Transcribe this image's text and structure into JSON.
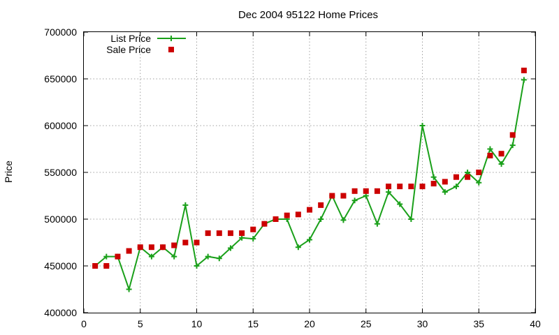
{
  "chart_data": {
    "type": "line",
    "title": "Dec 2004 95122 Home Prices",
    "xlabel": "",
    "ylabel": "Price",
    "xlim": [
      0,
      40
    ],
    "ylim": [
      400000,
      700000
    ],
    "xticks": [
      0,
      5,
      10,
      15,
      20,
      25,
      30,
      35,
      40
    ],
    "yticks": [
      400000,
      450000,
      500000,
      550000,
      600000,
      650000,
      700000
    ],
    "grid": true,
    "legend_position": "top-left",
    "series": [
      {
        "name": "List Price",
        "style": "line-with-plus-markers",
        "color": "#1aa01a",
        "x": [
          1,
          2,
          3,
          4,
          5,
          6,
          7,
          8,
          9,
          10,
          11,
          12,
          13,
          14,
          15,
          16,
          17,
          18,
          19,
          20,
          21,
          22,
          23,
          24,
          25,
          26,
          27,
          28,
          29,
          30,
          31,
          32,
          33,
          34,
          35,
          36,
          37,
          38,
          39
        ],
        "values": [
          450000,
          460000,
          460000,
          425000,
          470000,
          460000,
          470000,
          460000,
          515000,
          450000,
          460000,
          458000,
          469000,
          480000,
          479000,
          495000,
          500000,
          500000,
          470000,
          478000,
          500000,
          525000,
          499000,
          520000,
          525000,
          495000,
          529000,
          516000,
          500000,
          600000,
          545000,
          529000,
          535000,
          550000,
          539000,
          575000,
          559000,
          579000,
          649000
        ]
      },
      {
        "name": "Sale Price",
        "style": "square-markers",
        "color": "#cc0000",
        "x": [
          1,
          2,
          3,
          4,
          5,
          6,
          7,
          8,
          9,
          10,
          11,
          12,
          13,
          14,
          15,
          16,
          17,
          18,
          19,
          20,
          21,
          22,
          23,
          24,
          25,
          26,
          27,
          28,
          29,
          30,
          31,
          32,
          33,
          34,
          35,
          36,
          37,
          38,
          39
        ],
        "values": [
          450000,
          450000,
          460000,
          466000,
          470000,
          470000,
          470000,
          472000,
          475000,
          475000,
          485000,
          485000,
          485000,
          485000,
          489000,
          495000,
          500000,
          504000,
          505000,
          510000,
          515000,
          525000,
          525000,
          530000,
          530000,
          530000,
          535000,
          535000,
          535000,
          535000,
          538000,
          540000,
          545000,
          545000,
          550000,
          568000,
          570000,
          590000,
          659000
        ]
      }
    ]
  }
}
